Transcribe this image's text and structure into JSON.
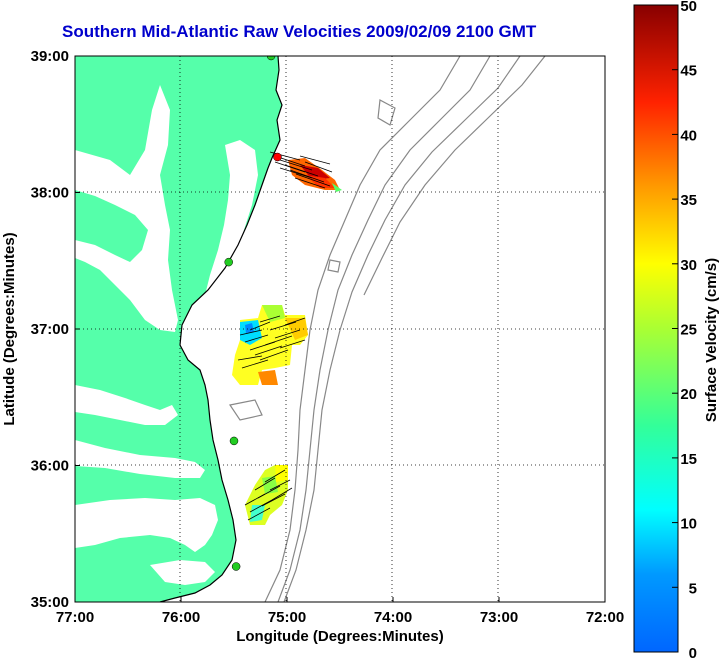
{
  "title": "Southern Mid-Atlantic Raw Velocities 2009/02/09 2100 GMT",
  "title_color": "#0000cc",
  "x_axis": {
    "label": "Longitude (Degrees:Minutes)",
    "ticks": [
      "77:00",
      "76:00",
      "75:00",
      "74:00",
      "73:00",
      "72:00"
    ]
  },
  "y_axis": {
    "label": "Latitude (Degrees:Minutes)",
    "ticks": [
      "39:00",
      "38:00",
      "37:00",
      "36:00",
      "35:00"
    ]
  },
  "colorbar": {
    "label": "Surface Velocity (cm/s)",
    "ticks": [
      "50",
      "45",
      "40",
      "35",
      "30",
      "25",
      "20",
      "15",
      "10",
      "5",
      "0"
    ],
    "range": [
      0,
      50
    ]
  },
  "land_color": "#55ffaa",
  "coast_color": "#000000",
  "bathymetry_color": "#888888",
  "grid_style": "dotted",
  "stations": [
    {
      "lon": -75.09,
      "lat": 38.26,
      "color": "#ff0000"
    },
    {
      "lon": -75.55,
      "lat": 37.49,
      "color": "#22cc22"
    },
    {
      "lon": -75.5,
      "lat": 36.18,
      "color": "#22cc22"
    },
    {
      "lon": -75.48,
      "lat": 35.26,
      "color": "#22cc22"
    },
    {
      "lon": -75.15,
      "lat": 39.0,
      "color": "#22cc22"
    }
  ]
}
